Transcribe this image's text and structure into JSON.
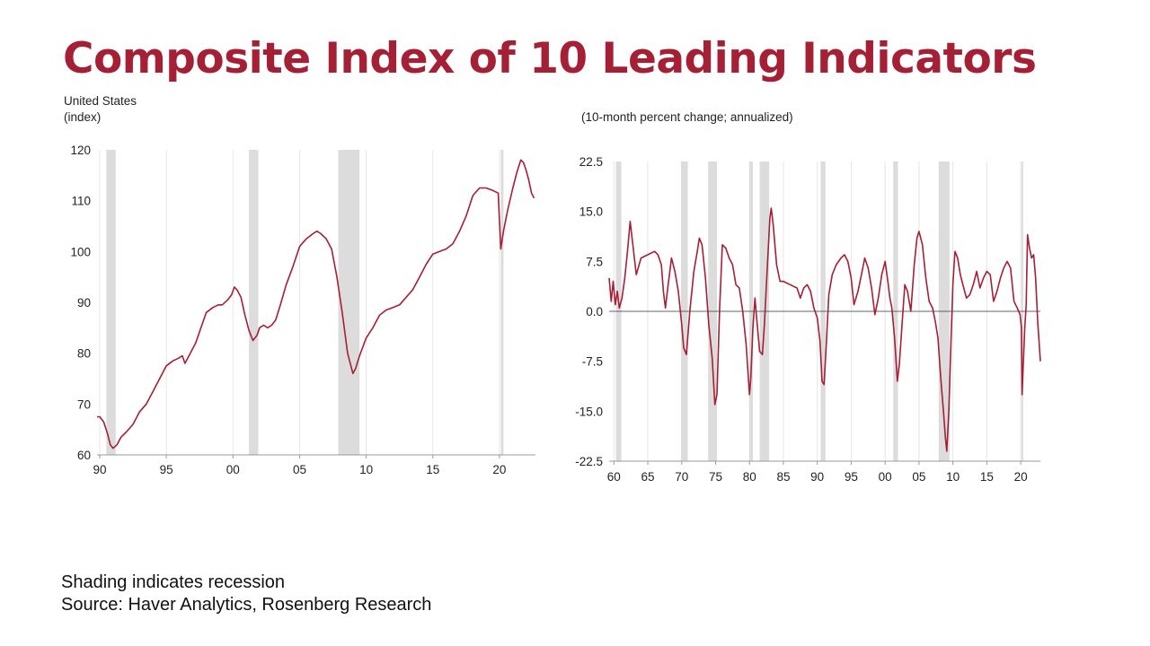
{
  "title": "Composite Index of 10 Leading Indicators",
  "left_subtitle_1": "United States",
  "left_subtitle_2": "(index)",
  "right_subtitle": "(10-month percent change; annualized)",
  "footer_1": "Shading indicates recession",
  "footer_2": "Source: Haver Analytics, Rosenberg Research",
  "colors": {
    "title": "#a51f35",
    "line": "#a51f35",
    "recession": "#dcdcdc",
    "grid": "#e6e6e6",
    "zero_line": "#333333"
  },
  "chart_data": [
    {
      "type": "line",
      "title": "",
      "xlabel": "",
      "ylabel": "(index)",
      "xlim": [
        1989.8,
        2022.7
      ],
      "ylim": [
        60,
        120
      ],
      "x_ticks": [
        1990,
        1995,
        2000,
        2005,
        2010,
        2015,
        2020
      ],
      "x_tick_labels": [
        "90",
        "95",
        "00",
        "05",
        "10",
        "15",
        "20"
      ],
      "y_ticks": [
        60,
        70,
        80,
        90,
        100,
        110,
        120
      ],
      "y_tick_labels": [
        "60",
        "70",
        "80",
        "90",
        "100",
        "110",
        "120"
      ],
      "recessions": [
        [
          1990.5,
          1991.2
        ],
        [
          2001.2,
          2001.9
        ],
        [
          2007.9,
          2009.5
        ],
        [
          2020.1,
          2020.3
        ]
      ],
      "series": [
        {
          "name": "Composite Index of 10 Leading Indicators",
          "x": [
            1989.8,
            1990.0,
            1990.3,
            1990.6,
            1990.8,
            1991.0,
            1991.3,
            1991.6,
            1992.0,
            1992.5,
            1993.0,
            1993.5,
            1994.0,
            1994.5,
            1995.0,
            1995.5,
            1995.9,
            1996.2,
            1996.4,
            1996.8,
            1997.2,
            1997.6,
            1998.0,
            1998.5,
            1998.9,
            1999.2,
            1999.6,
            1999.9,
            2000.1,
            2000.3,
            2000.6,
            2000.9,
            2001.2,
            2001.5,
            2001.8,
            2002.0,
            2002.3,
            2002.6,
            2002.9,
            2003.2,
            2003.5,
            2004.0,
            2004.5,
            2005.0,
            2005.5,
            2006.0,
            2006.3,
            2006.6,
            2007.0,
            2007.4,
            2007.8,
            2008.2,
            2008.6,
            2009.0,
            2009.2,
            2009.5,
            2010.0,
            2010.5,
            2011.0,
            2011.5,
            2012.0,
            2012.5,
            2013.0,
            2013.5,
            2014.0,
            2014.5,
            2015.0,
            2015.5,
            2016.0,
            2016.5,
            2017.0,
            2017.5,
            2018.0,
            2018.5,
            2019.0,
            2019.5,
            2019.9,
            2020.1,
            2020.3,
            2020.6,
            2021.0,
            2021.3,
            2021.6,
            2021.8,
            2022.0,
            2022.2,
            2022.4,
            2022.6
          ],
          "y": [
            67.5,
            67.5,
            66.5,
            64.0,
            62.0,
            61.3,
            62.0,
            63.5,
            64.5,
            66.0,
            68.5,
            70.0,
            72.5,
            75.0,
            77.5,
            78.5,
            79.0,
            79.5,
            78.0,
            80.0,
            82.0,
            85.0,
            88.0,
            89.0,
            89.5,
            89.5,
            90.5,
            91.5,
            93.0,
            92.5,
            91.0,
            87.5,
            84.5,
            82.5,
            83.5,
            85.0,
            85.5,
            85.0,
            85.5,
            86.5,
            89.0,
            93.5,
            97.0,
            101.0,
            102.5,
            103.5,
            104.0,
            103.5,
            102.5,
            100.5,
            95.0,
            88.0,
            80.0,
            76.0,
            77.0,
            79.5,
            83.0,
            85.0,
            87.5,
            88.5,
            89.0,
            89.5,
            91.0,
            92.5,
            95.0,
            97.5,
            99.5,
            100.0,
            100.5,
            101.5,
            104.0,
            107.0,
            111.0,
            112.5,
            112.5,
            112.0,
            111.5,
            100.5,
            104.0,
            108.0,
            112.5,
            115.5,
            118.0,
            117.5,
            116.0,
            114.0,
            111.5,
            110.5
          ]
        }
      ]
    },
    {
      "type": "line",
      "title": "(10-month percent change; annualized)",
      "xlabel": "",
      "ylabel": "",
      "xlim": [
        1959.3,
        2022.9
      ],
      "ylim": [
        -22.5,
        22.5
      ],
      "x_ticks": [
        1960,
        1965,
        1970,
        1975,
        1980,
        1985,
        1990,
        1995,
        2000,
        2005,
        2010,
        2015,
        2020
      ],
      "x_tick_labels": [
        "60",
        "65",
        "70",
        "75",
        "80",
        "85",
        "90",
        "95",
        "00",
        "05",
        "10",
        "15",
        "20"
      ],
      "y_ticks": [
        22.5,
        15.0,
        7.5,
        0.0,
        -7.5,
        -15.0,
        -22.5
      ],
      "y_tick_labels": [
        "22.5",
        "15.0",
        "7.5",
        "0.0",
        "-7.5",
        "-15.0",
        "-22.5"
      ],
      "recessions": [
        [
          1960.3,
          1961.1
        ],
        [
          1969.9,
          1970.9
        ],
        [
          1973.9,
          1975.2
        ],
        [
          1980.0,
          1980.5
        ],
        [
          1981.5,
          1982.9
        ],
        [
          1990.5,
          1991.2
        ],
        [
          2001.2,
          2001.9
        ],
        [
          2007.9,
          2009.5
        ],
        [
          2020.1,
          2020.3
        ]
      ],
      "series": [
        {
          "name": "Composite Index 10-month percent change, annualized",
          "x": [
            1959.3,
            1959.6,
            1959.9,
            1960.2,
            1960.5,
            1960.8,
            1961.2,
            1961.6,
            1962.0,
            1962.4,
            1962.8,
            1963.3,
            1964.0,
            1965.0,
            1966.0,
            1966.5,
            1967.0,
            1967.3,
            1967.6,
            1968.0,
            1968.5,
            1969.0,
            1969.5,
            1970.0,
            1970.3,
            1970.7,
            1971.2,
            1971.8,
            1972.3,
            1972.6,
            1973.0,
            1973.5,
            1974.0,
            1974.5,
            1974.9,
            1975.2,
            1975.6,
            1976.0,
            1976.5,
            1977.0,
            1977.5,
            1978.0,
            1978.5,
            1979.0,
            1979.5,
            1980.0,
            1980.2,
            1980.5,
            1980.8,
            1981.1,
            1981.5,
            1981.9,
            1982.2,
            1982.6,
            1983.0,
            1983.2,
            1983.5,
            1984.0,
            1984.5,
            1985.0,
            1986.0,
            1987.0,
            1987.5,
            1988.0,
            1988.5,
            1989.0,
            1989.5,
            1990.0,
            1990.4,
            1990.7,
            1991.0,
            1991.3,
            1991.7,
            1992.2,
            1992.8,
            1993.5,
            1994.0,
            1994.5,
            1995.0,
            1995.4,
            1996.0,
            1996.5,
            1997.0,
            1997.5,
            1998.0,
            1998.5,
            1999.0,
            1999.5,
            2000.0,
            2000.4,
            2000.7,
            2001.0,
            2001.4,
            2001.8,
            2002.1,
            2002.5,
            2002.9,
            2003.3,
            2003.8,
            2004.3,
            2004.7,
            2005.0,
            2005.5,
            2006.0,
            2006.5,
            2007.0,
            2007.4,
            2007.8,
            2008.2,
            2008.6,
            2008.9,
            2009.1,
            2009.4,
            2009.7,
            2010.0,
            2010.3,
            2010.7,
            2011.1,
            2011.6,
            2012.0,
            2012.5,
            2013.0,
            2013.5,
            2014.0,
            2014.5,
            2015.0,
            2015.5,
            2016.0,
            2016.5,
            2017.0,
            2017.5,
            2018.0,
            2018.5,
            2019.0,
            2019.5,
            2019.9,
            2020.1,
            2020.2,
            2020.4,
            2020.6,
            2020.8,
            2021.0,
            2021.3,
            2021.6,
            2021.9,
            2022.2,
            2022.5,
            2022.9
          ],
          "y": [
            5.0,
            1.5,
            4.5,
            1.0,
            3.0,
            0.5,
            2.0,
            5.0,
            9.0,
            13.5,
            10.0,
            5.5,
            8.0,
            8.5,
            9.0,
            8.5,
            7.0,
            3.0,
            0.5,
            4.0,
            8.0,
            6.0,
            3.0,
            -2.0,
            -5.5,
            -6.5,
            0.0,
            6.0,
            9.0,
            11.0,
            10.0,
            5.0,
            -2.0,
            -7.0,
            -14.0,
            -12.5,
            0.5,
            10.0,
            9.5,
            8.0,
            7.0,
            4.0,
            3.5,
            0.0,
            -5.0,
            -12.5,
            -10.0,
            -2.5,
            2.0,
            -1.5,
            -6.0,
            -6.5,
            -2.0,
            6.0,
            14.0,
            15.5,
            13.0,
            7.0,
            4.5,
            4.5,
            4.0,
            3.5,
            2.0,
            3.5,
            4.0,
            3.0,
            0.5,
            -1.0,
            -4.5,
            -10.5,
            -11.0,
            -5.5,
            2.5,
            5.5,
            7.0,
            8.0,
            8.5,
            7.5,
            5.0,
            1.0,
            3.0,
            5.5,
            8.0,
            6.5,
            3.5,
            -0.5,
            2.0,
            5.5,
            7.5,
            4.5,
            2.0,
            0.5,
            -4.0,
            -10.5,
            -8.0,
            -2.0,
            4.0,
            3.0,
            0.0,
            7.0,
            11.0,
            12.0,
            10.0,
            5.0,
            1.5,
            0.5,
            -1.5,
            -4.0,
            -10.0,
            -15.0,
            -19.0,
            -21.0,
            -15.0,
            -5.0,
            4.0,
            9.0,
            8.0,
            5.5,
            3.5,
            2.0,
            2.5,
            4.0,
            6.0,
            3.5,
            5.0,
            6.0,
            5.5,
            1.5,
            3.0,
            5.0,
            6.5,
            7.5,
            6.5,
            1.5,
            0.5,
            -0.5,
            -2.5,
            -12.5,
            -7.5,
            -2.5,
            1.0,
            11.5,
            9.5,
            8.0,
            8.5,
            5.0,
            -1.5,
            -7.5
          ]
        }
      ]
    }
  ]
}
